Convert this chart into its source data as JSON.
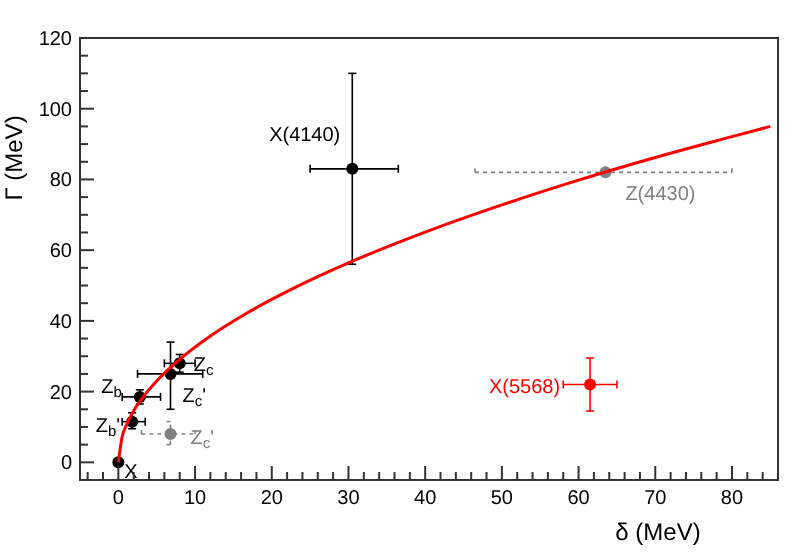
{
  "chart_data": {
    "type": "scatter",
    "xlabel": "δ (MeV)",
    "ylabel": "Γ (MeV)",
    "xlim": [
      -5,
      86
    ],
    "ylim": [
      -5,
      120
    ],
    "xticks": [
      {
        "value": -4,
        "label": null
      },
      {
        "value": -2,
        "label": null
      },
      0,
      {
        "value": 2,
        "label": null
      },
      {
        "value": 4,
        "label": null
      },
      {
        "value": 6,
        "label": null
      },
      {
        "value": 8,
        "label": null
      },
      10,
      {
        "value": 12,
        "label": null
      },
      {
        "value": 14,
        "label": null
      },
      {
        "value": 16,
        "label": null
      },
      {
        "value": 18,
        "label": null
      },
      20,
      {
        "value": 22,
        "label": null
      },
      {
        "value": 24,
        "label": null
      },
      {
        "value": 26,
        "label": null
      },
      {
        "value": 28,
        "label": null
      },
      30,
      {
        "value": 32,
        "label": null
      },
      {
        "value": 34,
        "label": null
      },
      {
        "value": 36,
        "label": null
      },
      {
        "value": 38,
        "label": null
      },
      40,
      {
        "value": 42,
        "label": null
      },
      {
        "value": 44,
        "label": null
      },
      {
        "value": 46,
        "label": null
      },
      {
        "value": 48,
        "label": null
      },
      50,
      {
        "value": 52,
        "label": null
      },
      {
        "value": 54,
        "label": null
      },
      {
        "value": 56,
        "label": null
      },
      {
        "value": 58,
        "label": null
      },
      60,
      {
        "value": 62,
        "label": null
      },
      {
        "value": 64,
        "label": null
      },
      {
        "value": 66,
        "label": null
      },
      {
        "value": 68,
        "label": null
      },
      70,
      {
        "value": 72,
        "label": null
      },
      {
        "value": 74,
        "label": null
      },
      {
        "value": 76,
        "label": null
      },
      {
        "value": 78,
        "label": null
      },
      80,
      {
        "value": 82,
        "label": null
      },
      {
        "value": 84,
        "label": null
      }
    ],
    "yticks": [
      0,
      {
        "value": 5,
        "label": null
      },
      {
        "value": 10,
        "label": null
      },
      {
        "value": 15,
        "label": null
      },
      20,
      {
        "value": 25,
        "label": null
      },
      {
        "value": 30,
        "label": null
      },
      {
        "value": 35,
        "label": null
      },
      40,
      {
        "value": 45,
        "label": null
      },
      {
        "value": 50,
        "label": null
      },
      {
        "value": 55,
        "label": null
      },
      60,
      {
        "value": 65,
        "label": null
      },
      {
        "value": 70,
        "label": null
      },
      {
        "value": 75,
        "label": null
      },
      80,
      {
        "value": 85,
        "label": null
      },
      {
        "value": 90,
        "label": null
      },
      {
        "value": 95,
        "label": null
      },
      100,
      {
        "value": 105,
        "label": null
      },
      {
        "value": 110,
        "label": null
      },
      {
        "value": 115,
        "label": null
      },
      120
    ],
    "marker": "circle",
    "grid": false,
    "series": [
      {
        "name": "X",
        "color": "#000000",
        "x": [
          0
        ],
        "values": [
          0
        ]
      },
      {
        "name": "Z$_{b}$'",
        "color": "#000000",
        "x": [
          1.8
        ],
        "values": [
          11.5
        ],
        "errors": [
          [
            9.5,
            14
          ]
        ],
        "xerrors": [
          [
            0.5,
            3.5
          ]
        ]
      },
      {
        "name": "Z$_{b}$",
        "color": "#000000",
        "x": [
          2.8
        ],
        "values": [
          18.5
        ],
        "errors": [
          [
            16.5,
            20.5
          ]
        ],
        "xerrors": [
          [
            0.5,
            5.5
          ]
        ]
      },
      {
        "name": "Z$_{c}$'",
        "color": "#000000",
        "x": [
          6.8
        ],
        "values": [
          25
        ],
        "errors": [
          [
            15,
            34
          ]
        ],
        "xerrors": [
          [
            2.5,
            11
          ]
        ]
      },
      {
        "name": "Z$_{c}$",
        "color": "#000000",
        "x": [
          8
        ],
        "values": [
          28
        ],
        "errors": [
          [
            25.5,
            30.5
          ]
        ],
        "xerrors": [
          [
            6,
            10
          ]
        ]
      },
      {
        "name": "X(4140)",
        "color": "#000000",
        "x": [
          30.5
        ],
        "values": [
          83
        ],
        "errors": [
          [
            56,
            110
          ]
        ],
        "xerrors": [
          [
            25,
            36.5
          ]
        ]
      },
      {
        "name": "Z$_{c}$'",
        "color": "#808080",
        "x": [
          6.8
        ],
        "values": [
          8
        ],
        "errors": [
          [
            5,
            11.5
          ]
        ],
        "xerrors": [
          [
            3,
            10
          ]
        ],
        "line_style": "dashed"
      },
      {
        "name": "Z(4430)",
        "color": "#808080",
        "x": [
          63.5
        ],
        "values": [
          82
        ],
        "xerrors": [
          [
            46.5,
            80
          ]
        ],
        "line_style": "dashed"
      },
      {
        "name": "X(5568)",
        "color": "#ff0000",
        "x": [
          61.5
        ],
        "values": [
          22
        ],
        "errors": [
          [
            14.5,
            29.5
          ]
        ],
        "xerrors": [
          [
            58,
            65
          ]
        ]
      },
      {
        "type": "line",
        "color": "#ff0000",
        "marker": "none",
        "x": [
          0,
          0.5,
          1,
          2,
          3,
          5,
          8,
          12,
          17,
          23,
          30,
          40,
          50,
          60,
          70,
          80,
          85
        ],
        "values": [
          0,
          7.3,
          10.3,
          14.6,
          17.8,
          23.0,
          29.1,
          35.7,
          42.5,
          49.4,
          56.4,
          65.1,
          72.8,
          79.8,
          86.2,
          92.1,
          95.0
        ]
      }
    ]
  }
}
